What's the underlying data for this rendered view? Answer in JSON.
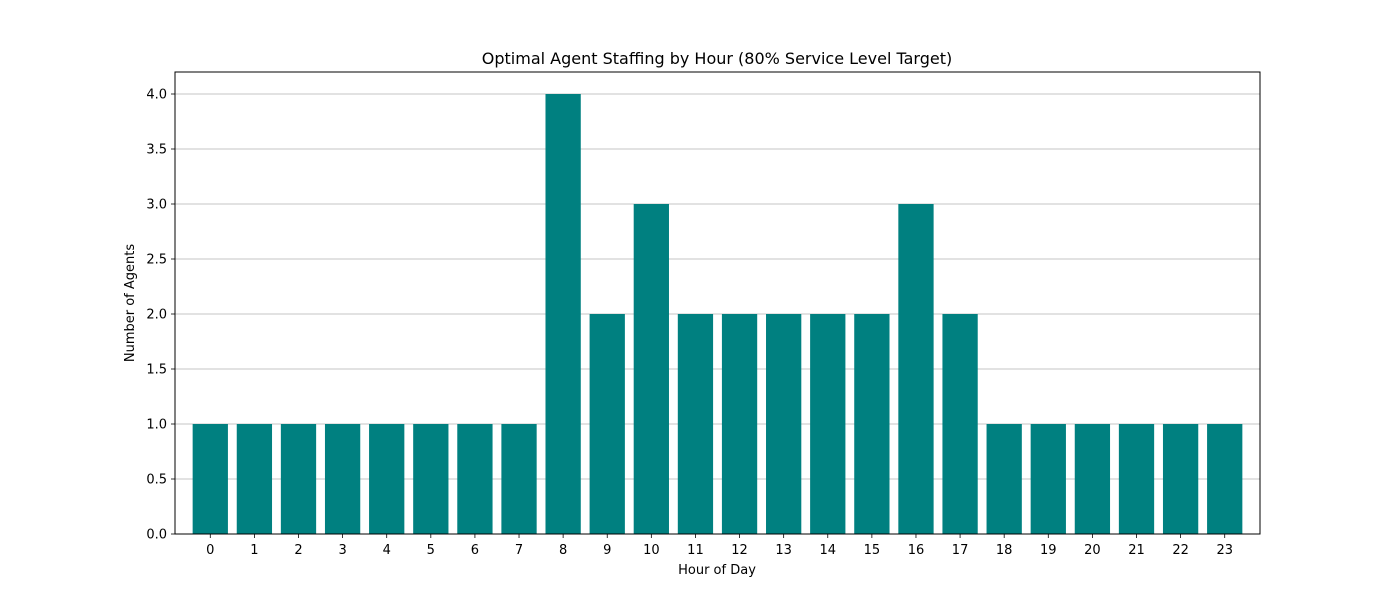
{
  "chart_data": {
    "type": "bar",
    "title": "Optimal Agent Staffing by Hour (80% Service Level Target)",
    "xlabel": "Hour of Day",
    "ylabel": "Number of Agents",
    "categories": [
      "0",
      "1",
      "2",
      "3",
      "4",
      "5",
      "6",
      "7",
      "8",
      "9",
      "10",
      "11",
      "12",
      "13",
      "14",
      "15",
      "16",
      "17",
      "18",
      "19",
      "20",
      "21",
      "22",
      "23"
    ],
    "values": [
      1,
      1,
      1,
      1,
      1,
      1,
      1,
      1,
      4,
      2,
      3,
      2,
      2,
      2,
      2,
      2,
      3,
      2,
      1,
      1,
      1,
      1,
      1,
      1
    ],
    "ylim": [
      0,
      4.2
    ],
    "yticks": [
      "0.0",
      "0.5",
      "1.0",
      "1.5",
      "2.0",
      "2.5",
      "3.0",
      "3.5",
      "4.0"
    ],
    "grid": "y",
    "bar_color": "#008080",
    "grid_color": "#b0b0b0"
  }
}
